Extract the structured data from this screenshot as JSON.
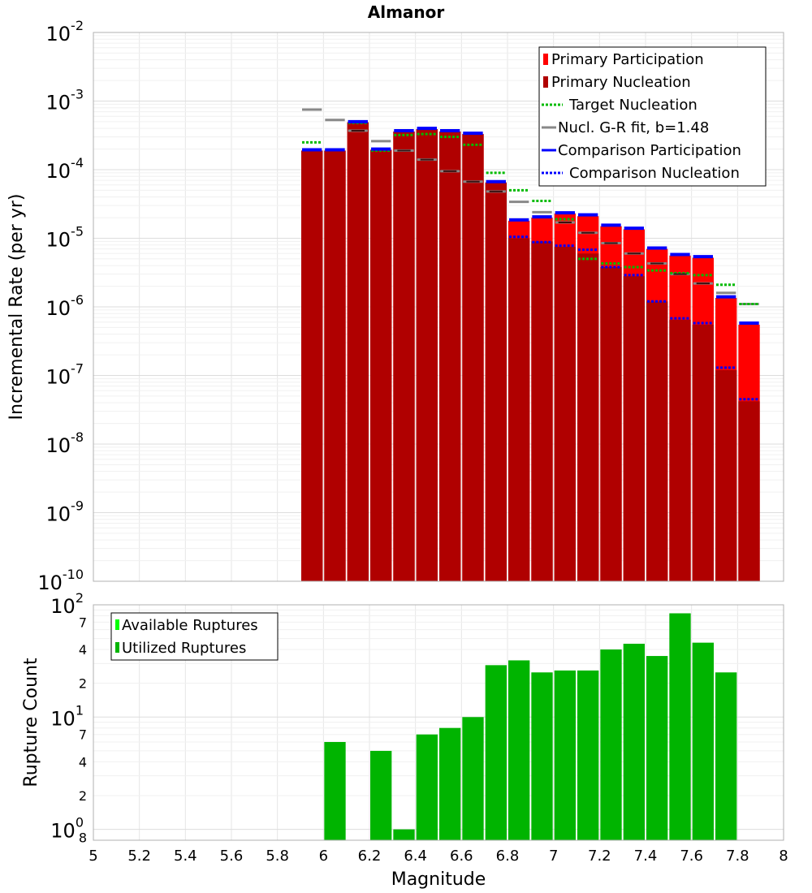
{
  "chart_data": [
    {
      "type": "bar",
      "title": "Almanor",
      "xlabel": "",
      "ylabel": "Incremental Rate (per yr)",
      "yscale": "log",
      "xlim": [
        5,
        8
      ],
      "ylim": [
        1e-10,
        0.01
      ],
      "y_ticks": [
        {
          "base": "10",
          "exp": "-10",
          "value": 1e-10
        },
        {
          "base": "10",
          "exp": "-9",
          "value": 1e-09
        },
        {
          "base": "10",
          "exp": "-8",
          "value": 1e-08
        },
        {
          "base": "10",
          "exp": "-7",
          "value": 1e-07
        },
        {
          "base": "10",
          "exp": "-6",
          "value": 1e-06
        },
        {
          "base": "10",
          "exp": "-5",
          "value": 1e-05
        },
        {
          "base": "10",
          "exp": "-4",
          "value": 0.0001
        },
        {
          "base": "10",
          "exp": "-3",
          "value": 0.001
        },
        {
          "base": "10",
          "exp": "-2",
          "value": 0.01
        }
      ],
      "grid": true,
      "legend_position": "top-right",
      "x": [
        5.95,
        6.05,
        6.15,
        6.25,
        6.35,
        6.45,
        6.55,
        6.65,
        6.75,
        6.85,
        6.95,
        7.05,
        7.15,
        7.25,
        7.35,
        7.45,
        7.55,
        7.65,
        7.75,
        7.85
      ],
      "series": [
        {
          "name": "Primary Participation",
          "color": "#ff0000",
          "style": "bar",
          "values": [
            0.00019,
            0.00019,
            0.00049,
            0.000195,
            0.00036,
            0.00039,
            0.00036,
            0.00033,
            6.5e-05,
            1.8e-05,
            2e-05,
            2.3e-05,
            2.1e-05,
            1.5e-05,
            1.35e-05,
            7e-06,
            5.6e-06,
            5.2e-06,
            1.35e-06,
            5.5e-07
          ]
        },
        {
          "name": "Primary Nucleation",
          "color": "#b00000",
          "style": "bar",
          "values": [
            0.00019,
            0.00019,
            0.00049,
            0.000195,
            0.00036,
            0.00039,
            0.00036,
            0.00033,
            6.5e-05,
            1e-05,
            9e-06,
            7.5e-06,
            6e-06,
            3.8e-06,
            2.8e-06,
            1.2e-06,
            6.5e-07,
            5.5e-07,
            1.2e-07,
            4.2e-08
          ]
        },
        {
          "name": "Target Nucleation",
          "color": "#00bb00",
          "style": "dotted-step",
          "values": [
            0.00025,
            0.000195,
            0.00048,
            0.00019,
            0.00032,
            0.00033,
            0.0003,
            0.00023,
            9e-05,
            5e-05,
            3.5e-05,
            1.9e-05,
            5e-06,
            4.3e-06,
            3.8e-06,
            3.4e-06,
            3.1e-06,
            2.9e-06,
            2.1e-06,
            1.1e-06
          ]
        },
        {
          "name": "Nucl. G-R fit, b=1.48",
          "color": "#888888",
          "style": "solid-step",
          "values": [
            0.00075,
            0.00053,
            0.00037,
            0.00026,
            0.00019,
            0.00014,
            9.5e-05,
            6.7e-05,
            4.8e-05,
            3.4e-05,
            2.4e-05,
            1.7e-05,
            1.2e-05,
            8.5e-06,
            6e-06,
            4.3e-06,
            3e-06,
            2.2e-06,
            1.6e-06,
            1.1e-06
          ]
        },
        {
          "name": "Comparison Participation",
          "color": "#0000ff",
          "style": "solid-step",
          "values": [
            0.000195,
            0.000195,
            0.0005,
            0.0002,
            0.00037,
            0.0004,
            0.00037,
            0.00034,
            6.7e-05,
            1.85e-05,
            2.05e-05,
            2.35e-05,
            2.2e-05,
            1.55e-05,
            1.4e-05,
            7.2e-06,
            5.8e-06,
            5.4e-06,
            1.4e-06,
            5.8e-07
          ]
        },
        {
          "name": "Comparison Nucleation",
          "color": "#0000ff",
          "style": "dotted-step",
          "values": [
            0.000195,
            0.000195,
            0.0005,
            0.0002,
            0.00037,
            0.0004,
            0.00037,
            0.00034,
            6.7e-05,
            1.05e-05,
            8.8e-06,
            7.8e-06,
            6.8e-06,
            3.8e-06,
            2.9e-06,
            1.2e-06,
            6.8e-07,
            5.8e-07,
            1.3e-07,
            4.5e-08
          ]
        }
      ]
    },
    {
      "type": "bar",
      "title": "",
      "xlabel": "Magnitude",
      "ylabel": "Rupture Count",
      "yscale": "log",
      "xlim": [
        5,
        8
      ],
      "ylim": [
        0.8,
        100
      ],
      "x_ticks": [
        "5",
        "5.2",
        "5.4",
        "5.6",
        "5.8",
        "6",
        "6.2",
        "6.4",
        "6.6",
        "6.8",
        "7",
        "7.2",
        "7.4",
        "7.6",
        "7.8",
        "8"
      ],
      "y_ticks": [
        {
          "base": "10",
          "exp": "0",
          "value": 1,
          "minor": "8"
        },
        {
          "base": "",
          "exp": "",
          "value": 2,
          "minor": "2"
        },
        {
          "base": "",
          "exp": "",
          "value": 4,
          "minor": "4"
        },
        {
          "base": "",
          "exp": "",
          "value": 7,
          "minor": "7"
        },
        {
          "base": "10",
          "exp": "1",
          "value": 10
        },
        {
          "base": "",
          "exp": "",
          "value": 20,
          "minor": "2"
        },
        {
          "base": "",
          "exp": "",
          "value": 40,
          "minor": "4"
        },
        {
          "base": "",
          "exp": "",
          "value": 70,
          "minor": "7"
        },
        {
          "base": "10",
          "exp": "2",
          "value": 100
        }
      ],
      "grid": true,
      "legend_position": "top-left",
      "x": [
        6.05,
        6.15,
        6.25,
        6.35,
        6.45,
        6.55,
        6.65,
        6.75,
        6.85,
        6.95,
        7.05,
        7.15,
        7.25,
        7.35,
        7.45,
        7.55,
        7.65,
        7.75
      ],
      "series": [
        {
          "name": "Available Ruptures",
          "color": "#00ff00",
          "values": [
            6,
            0,
            5,
            1,
            7,
            8,
            10,
            29,
            32,
            25,
            26,
            26,
            40,
            45,
            35,
            84,
            46,
            25
          ]
        },
        {
          "name": "Utilized Ruptures",
          "color": "#00b400",
          "values": [
            6,
            0,
            5,
            1,
            7,
            8,
            10,
            29,
            32,
            25,
            26,
            26,
            40,
            45,
            35,
            84,
            46,
            25
          ]
        }
      ]
    }
  ]
}
